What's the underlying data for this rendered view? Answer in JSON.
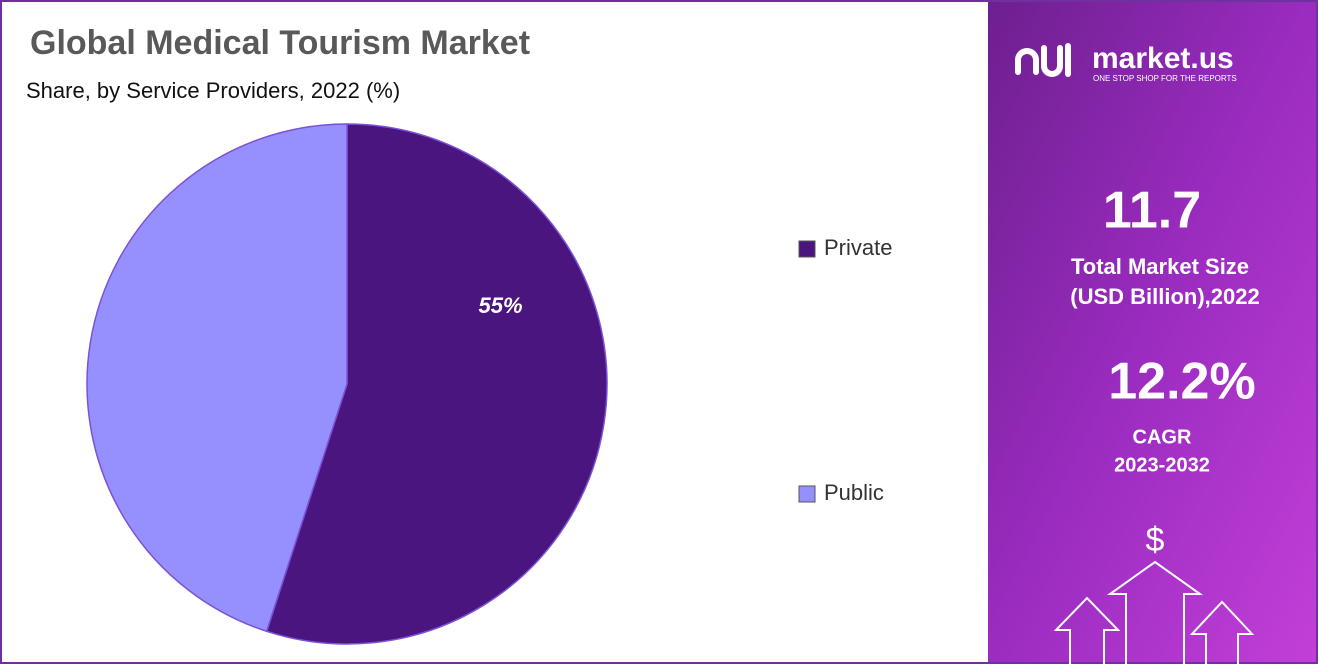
{
  "chart_data": {
    "type": "pie",
    "title": "Global Medical Tourism Market",
    "subtitle": "Share, by Service Providers, 2022 (%)",
    "categories": [
      "Private",
      "Public"
    ],
    "values": [
      55,
      45
    ],
    "value_labels": [
      "55%",
      null
    ],
    "colors": [
      "#4b1580",
      "#9690ff"
    ],
    "legend": "right"
  },
  "panel": {
    "brand": "market.us",
    "tagline": "ONE STOP SHOP FOR THE REPORTS",
    "market_size": "11.7",
    "market_size_label": [
      "Total Market Size",
      "(USD Billion),2022"
    ],
    "cagr": "12.2%",
    "cagr_label": [
      "CAGR",
      "2023-2032"
    ],
    "icon": "$"
  }
}
